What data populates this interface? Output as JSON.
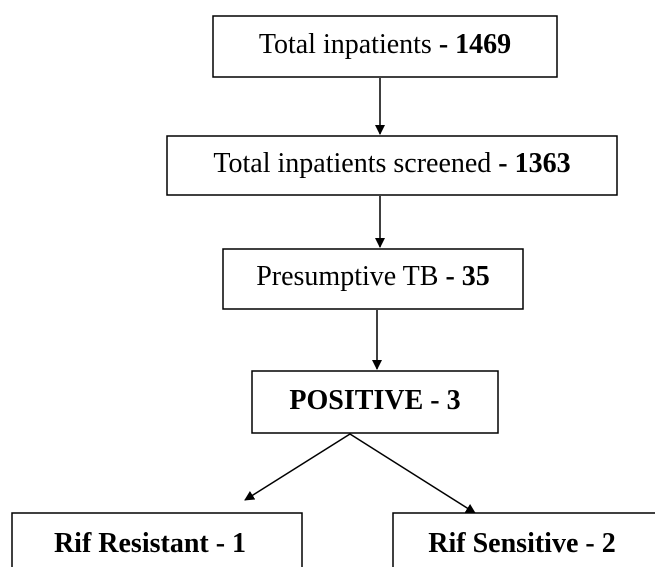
{
  "nodes": [
    {
      "label": "Total inpatients",
      "value": "- 1469"
    },
    {
      "label": "Total inpatients screened",
      "value": "- 1363"
    },
    {
      "label": "Presumptive TB",
      "value": "- 35"
    },
    {
      "label": "POSITIVE",
      "value": "- 3"
    },
    {
      "label": "Rif Resistant",
      "value": "- 1"
    },
    {
      "label": "Rif Sensitive",
      "value": "- 2"
    }
  ]
}
